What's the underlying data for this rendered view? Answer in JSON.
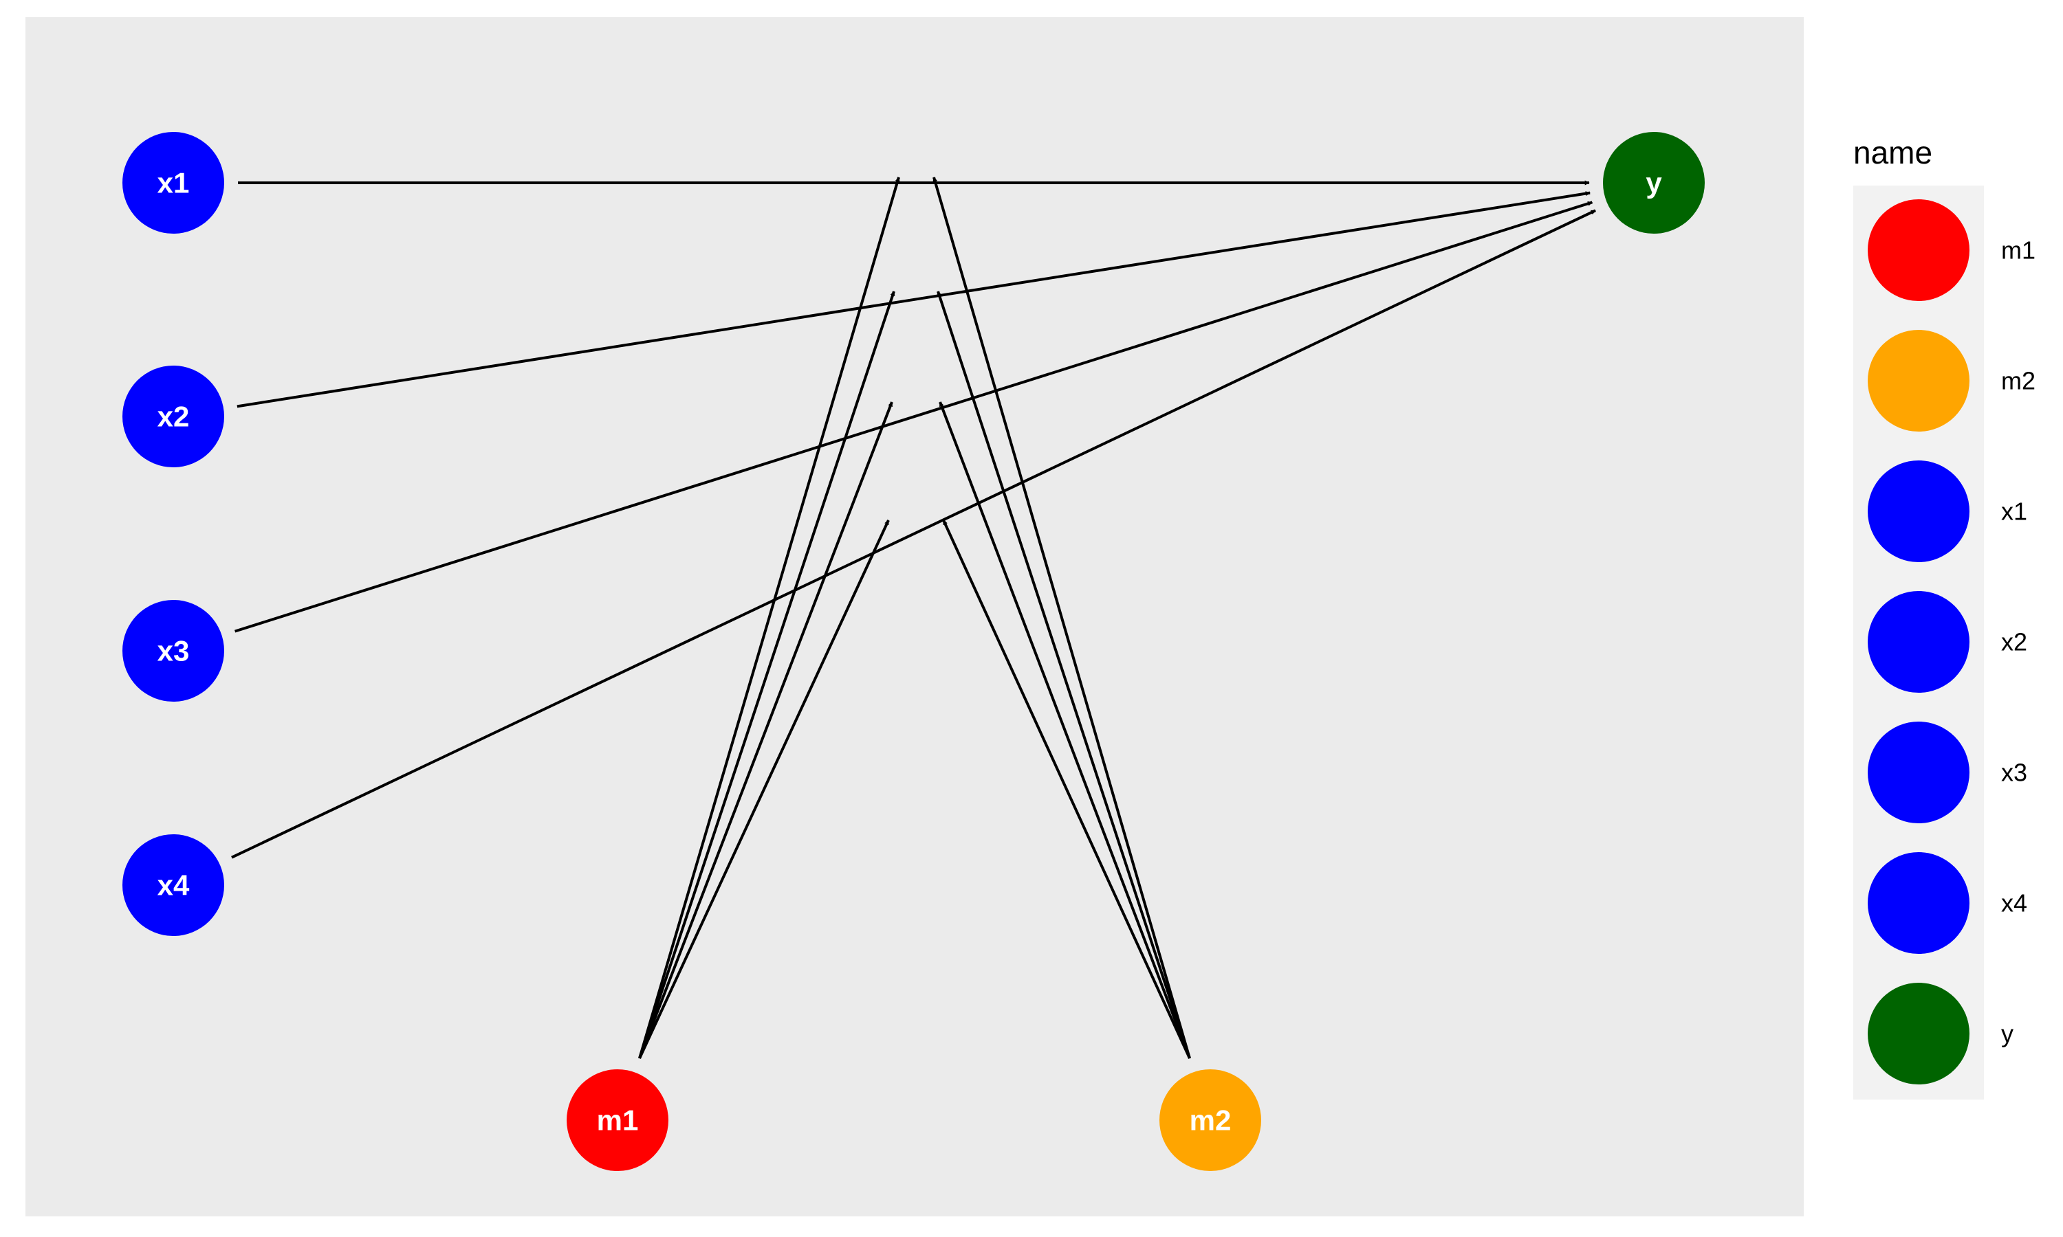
{
  "diagram": {
    "background_color": "#EBEBEB",
    "edge_color": "#000000",
    "nodes": [
      {
        "id": "x1",
        "label": "x1",
        "color": "#0000FF"
      },
      {
        "id": "x2",
        "label": "x2",
        "color": "#0000FF"
      },
      {
        "id": "x3",
        "label": "x3",
        "color": "#0000FF"
      },
      {
        "id": "x4",
        "label": "x4",
        "color": "#0000FF"
      },
      {
        "id": "m1",
        "label": "m1",
        "color": "#FF0000"
      },
      {
        "id": "m2",
        "label": "m2",
        "color": "#FFA500"
      },
      {
        "id": "y",
        "label": "y",
        "color": "#006400"
      }
    ],
    "edges": [
      {
        "from": "x1",
        "to": "y"
      },
      {
        "from": "x2",
        "to": "y"
      },
      {
        "from": "x3",
        "to": "y"
      },
      {
        "from": "x4",
        "to": "y"
      },
      {
        "from": "m1",
        "to": "x1-y"
      },
      {
        "from": "m1",
        "to": "x2-y"
      },
      {
        "from": "m1",
        "to": "x3-y"
      },
      {
        "from": "m1",
        "to": "x4-y"
      },
      {
        "from": "m2",
        "to": "x1-y"
      },
      {
        "from": "m2",
        "to": "x2-y"
      },
      {
        "from": "m2",
        "to": "x3-y"
      },
      {
        "from": "m2",
        "to": "x4-y"
      }
    ]
  },
  "legend": {
    "title": "name",
    "items": [
      {
        "label": "m1",
        "color": "#FF0000"
      },
      {
        "label": "m2",
        "color": "#FFA500"
      },
      {
        "label": "x1",
        "color": "#0000FF"
      },
      {
        "label": "x2",
        "color": "#0000FF"
      },
      {
        "label": "x3",
        "color": "#0000FF"
      },
      {
        "label": "x4",
        "color": "#0000FF"
      },
      {
        "label": "y",
        "color": "#006400"
      }
    ]
  }
}
